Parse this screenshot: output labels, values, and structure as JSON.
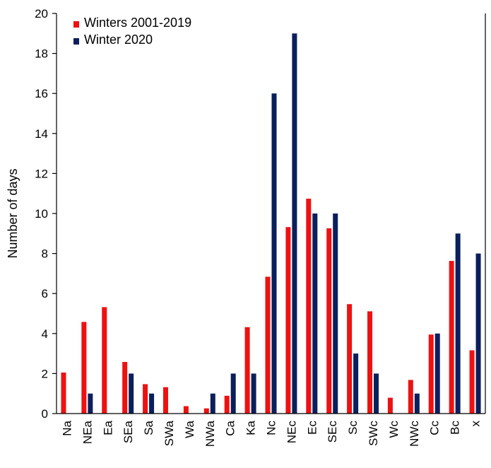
{
  "chart_data": {
    "type": "bar",
    "title": "",
    "xlabel": "",
    "ylabel": "Number of days",
    "ylim": [
      0,
      20
    ],
    "yticks": [
      0,
      2,
      4,
      6,
      8,
      10,
      12,
      14,
      16,
      18,
      20
    ],
    "grid": false,
    "legend_position": "top-left",
    "categories": [
      "Na",
      "NEa",
      "Ea",
      "SEa",
      "Sa",
      "SWa",
      "Wa",
      "NWa",
      "Ca",
      "Ka",
      "Nc",
      "NEc",
      "Ec",
      "SEc",
      "Sc",
      "SWc",
      "Wc",
      "NWc",
      "Cc",
      "Bc",
      "x"
    ],
    "series": [
      {
        "name": "Winters 2001-2019",
        "color": "#ee1111",
        "values": [
          2.05,
          4.58,
          5.32,
          2.58,
          1.47,
          1.32,
          0.37,
          0.26,
          0.89,
          4.32,
          6.84,
          9.32,
          10.74,
          9.26,
          5.47,
          5.11,
          0.79,
          1.68,
          3.95,
          7.63,
          3.16
        ]
      },
      {
        "name": "Winter 2020",
        "color": "#0a1f5c",
        "values": [
          0,
          1,
          0,
          2,
          1,
          0,
          0,
          1,
          2,
          2,
          16,
          19,
          10,
          10,
          3,
          2,
          0,
          1,
          4,
          9,
          8
        ]
      }
    ]
  }
}
